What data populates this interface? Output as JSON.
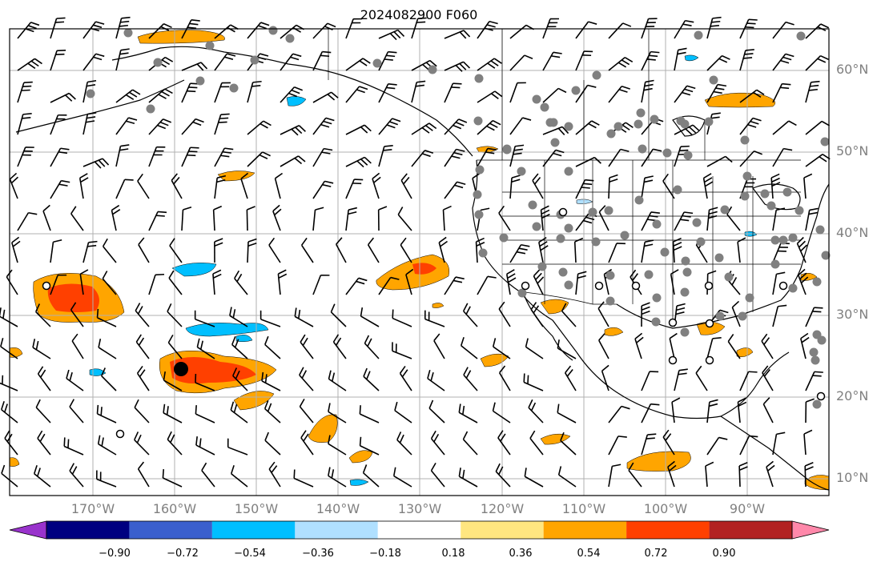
{
  "title": "2024082900 F060",
  "map": {
    "lat_labels": [
      "60°N",
      "50°N",
      "40°N",
      "30°N",
      "20°N",
      "10°N"
    ],
    "lon_labels": [
      "170°W",
      "160°W",
      "150°W",
      "140°W",
      "130°W",
      "120°W",
      "110°W",
      "100°W",
      "90°W"
    ],
    "grid_on": true,
    "lon_range": [
      -180,
      -80
    ],
    "lat_range": [
      8,
      64
    ]
  },
  "colorbar": {
    "tick_labels": [
      "−0.90",
      "−0.72",
      "−0.54",
      "−0.36",
      "−0.18",
      "0.18",
      "0.36",
      "0.54",
      "0.72",
      "0.90"
    ],
    "colors": [
      "#9933cc",
      "#000080",
      "#3a5fcd",
      "#00bfff",
      "#b0e0ff",
      "#ffffff",
      "#ffe680",
      "#ffa500",
      "#ff4000",
      "#b22222",
      "#ff88aa"
    ],
    "extend": "both"
  },
  "colors": {
    "land_outline": "#000000",
    "grid": "#b0b0b0",
    "station": "#808080",
    "positive_shade": "#ffa500",
    "strong_positive_shade": "#ff4000",
    "negative_shade": "#00bfff"
  }
}
